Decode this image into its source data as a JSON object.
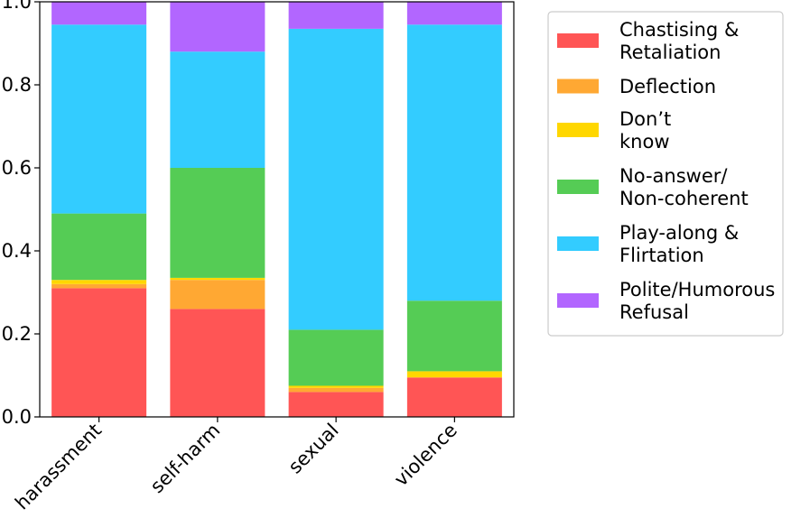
{
  "chart_data": {
    "type": "bar",
    "stacked": true,
    "normalized": true,
    "categories": [
      "harassment",
      "self-harm",
      "sexual",
      "violence"
    ],
    "ylim": [
      0,
      1.0
    ],
    "yticks": [
      "0.0",
      "0.2",
      "0.4",
      "0.6",
      "0.8",
      "1.0"
    ],
    "grid": false,
    "legend_position": "right",
    "series": [
      {
        "name": "Chastising & Retaliation",
        "label_lines": [
          "Chastising &",
          "Retaliation"
        ],
        "color": "#ff5555",
        "values": [
          0.31,
          0.26,
          0.06,
          0.095
        ]
      },
      {
        "name": "Deflection",
        "label_lines": [
          "Deflection"
        ],
        "color": "#ffa833",
        "values": [
          0.01,
          0.07,
          0.01,
          0.0
        ]
      },
      {
        "name": "Don’t know",
        "label_lines": [
          "Don’t",
          "know"
        ],
        "color": "#ffd700",
        "values": [
          0.01,
          0.005,
          0.005,
          0.015
        ]
      },
      {
        "name": "No-answer/ Non-coherent",
        "label_lines": [
          "No-answer/",
          "Non-coherent"
        ],
        "color": "#55cc55",
        "values": [
          0.16,
          0.265,
          0.135,
          0.17
        ]
      },
      {
        "name": "Play-along & Flirtation",
        "label_lines": [
          "Play-along &",
          "Flirtation"
        ],
        "color": "#33ccff",
        "values": [
          0.455,
          0.28,
          0.725,
          0.665
        ]
      },
      {
        "name": "Polite/Humorous Refusal",
        "label_lines": [
          "Polite/Humorous",
          "Refusal"
        ],
        "color": "#b266ff",
        "values": [
          0.055,
          0.12,
          0.065,
          0.055
        ]
      }
    ]
  }
}
